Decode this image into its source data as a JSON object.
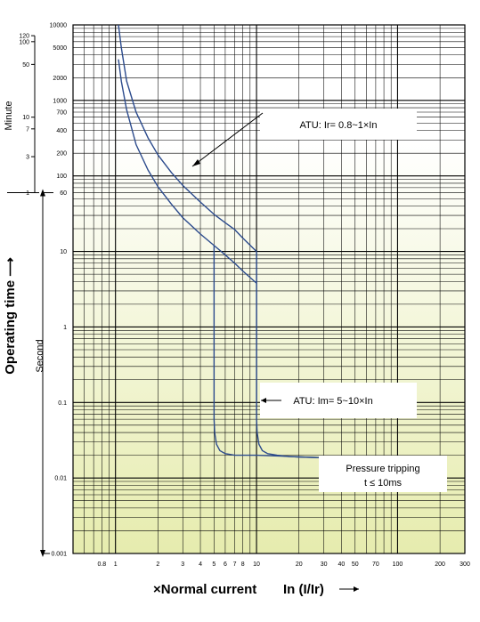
{
  "chart_data": {
    "type": "line",
    "xscale": "log",
    "yscale": "log",
    "xlim": [
      0.5,
      300
    ],
    "ylim": [
      0.001,
      10000
    ],
    "grid": true,
    "x_ticks": [
      {
        "value": 0.8,
        "label": "0.8"
      },
      {
        "value": 1,
        "label": "1"
      },
      {
        "value": 2,
        "label": "2"
      },
      {
        "value": 3,
        "label": "3"
      },
      {
        "value": 4,
        "label": "4"
      },
      {
        "value": 5,
        "label": "5"
      },
      {
        "value": 6,
        "label": "6"
      },
      {
        "value": 7,
        "label": "7"
      },
      {
        "value": 8,
        "label": "8"
      },
      {
        "value": 10,
        "label": "10"
      },
      {
        "value": 20,
        "label": "20"
      },
      {
        "value": 30,
        "label": "30"
      },
      {
        "value": 40,
        "label": "40"
      },
      {
        "value": 50,
        "label": "50"
      },
      {
        "value": 70,
        "label": "70"
      },
      {
        "value": 100,
        "label": "100"
      },
      {
        "value": 200,
        "label": "200"
      },
      {
        "value": 300,
        "label": "300"
      }
    ],
    "y_ticks": [
      {
        "value": 10000,
        "label": "10000"
      },
      {
        "value": 5000,
        "label": "5000"
      },
      {
        "value": 2000,
        "label": "2000"
      },
      {
        "value": 1000,
        "label": "1000"
      },
      {
        "value": 700,
        "label": "700"
      },
      {
        "value": 400,
        "label": "400"
      },
      {
        "value": 200,
        "label": "200"
      },
      {
        "value": 100,
        "label": "100"
      },
      {
        "value": 60,
        "label": "60"
      },
      {
        "value": 10,
        "label": "10"
      },
      {
        "value": 1,
        "label": "1"
      },
      {
        "value": 0.1,
        "label": "0.1"
      },
      {
        "value": 0.01,
        "label": "0.01"
      },
      {
        "value": 0.001,
        "label": "0.001"
      }
    ],
    "minute_ticks": [
      {
        "seconds": 7200,
        "label": "120"
      },
      {
        "seconds": 6000,
        "label": "100"
      },
      {
        "seconds": 3000,
        "label": "50"
      },
      {
        "seconds": 600,
        "label": "10"
      },
      {
        "seconds": 420,
        "label": "7"
      },
      {
        "seconds": 180,
        "label": "3"
      },
      {
        "seconds": 60,
        "label": "1"
      }
    ],
    "ylabel": "Operating time",
    "ylabel_minute": "Minute",
    "ylabel_second": "Second",
    "xlabel_prefix": "×",
    "xlabel": "Normal current",
    "xlabel_unit": "In (I/Ir)",
    "series": [
      {
        "x": [
          1.05,
          1.1,
          1.2,
          1.4,
          1.7,
          2,
          2.5,
          3,
          4,
          5,
          6,
          7,
          8,
          10
        ],
        "y": [
          10000,
          5000,
          1800,
          700,
          320,
          190,
          110,
          75,
          45,
          31,
          24,
          19.5,
          15,
          10
        ]
      },
      {
        "x": [
          1.05,
          1.1,
          1.2,
          1.4,
          1.7,
          2,
          2.5,
          3,
          4,
          5,
          6,
          7,
          8,
          10
        ],
        "y": [
          3500,
          1800,
          750,
          260,
          120,
          72,
          42,
          28,
          17,
          12,
          9,
          7,
          5.5,
          3.8
        ]
      },
      {
        "x": [
          5,
          5,
          5.05,
          5.2,
          5.5,
          6,
          7,
          10,
          15,
          20,
          30
        ],
        "y": [
          12,
          0.06,
          0.04,
          0.028,
          0.023,
          0.021,
          0.02,
          0.02,
          0.0195,
          0.019,
          0.0185
        ]
      },
      {
        "x": [
          10,
          10,
          10.1,
          10.4,
          11,
          12,
          14,
          17,
          20,
          30
        ],
        "y": [
          10,
          0.06,
          0.04,
          0.028,
          0.023,
          0.021,
          0.02,
          0.0192,
          0.019,
          0.0185
        ]
      }
    ],
    "annotations": {
      "atu_ir": "ATU: Ir= 0.8~1×In",
      "atu_im": "ATU: Im= 5~10×In",
      "pressure_line1": "Pressure tripping",
      "pressure_line2": "t ≤ 10ms"
    },
    "colors": {
      "curve": "#2b4a8c",
      "grid": "#000000",
      "fill_top": "#ffffff",
      "fill_bottom": "#e6ecae"
    }
  }
}
